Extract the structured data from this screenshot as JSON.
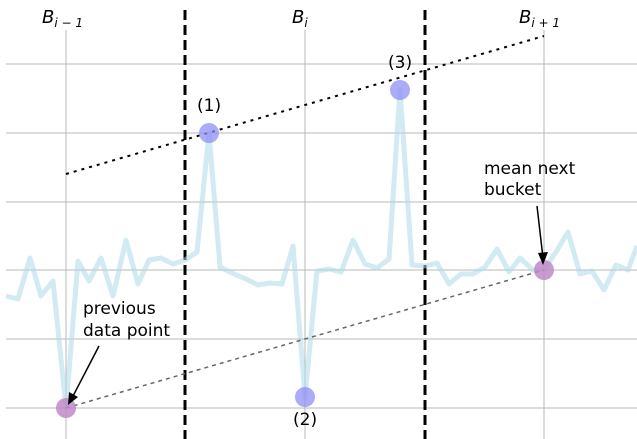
{
  "buckets": {
    "prev": {
      "base": "B",
      "sub": "i − 1"
    },
    "curr": {
      "base": "B",
      "sub": "i"
    },
    "next": {
      "base": "B",
      "sub": "i + 1"
    }
  },
  "candidate_labels": [
    "(1)",
    "(2)",
    "(3)"
  ],
  "annotations": {
    "mean_next": [
      "mean next",
      "bucket"
    ],
    "previous": [
      "previous",
      "data point"
    ]
  },
  "colors": {
    "signal": "#add8e6",
    "candidate": "#8f8ff5",
    "selected": "#c08ac8",
    "grid": "#b0b0b0",
    "bucket_divider": "#000000"
  }
}
